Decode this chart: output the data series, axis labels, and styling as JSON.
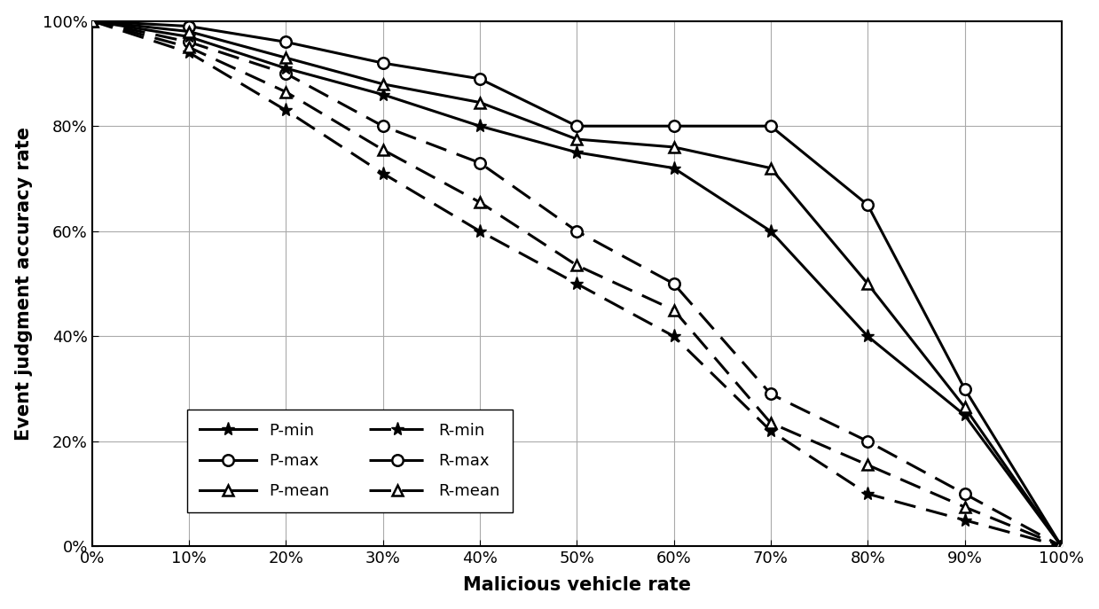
{
  "x": [
    0,
    0.1,
    0.2,
    0.3,
    0.4,
    0.5,
    0.6,
    0.7,
    0.8,
    0.9,
    1.0
  ],
  "P_min": [
    1.0,
    0.97,
    0.91,
    0.86,
    0.8,
    0.75,
    0.72,
    0.6,
    0.4,
    0.25,
    0.0
  ],
  "P_max": [
    1.0,
    0.99,
    0.96,
    0.92,
    0.89,
    0.8,
    0.8,
    0.8,
    0.65,
    0.3,
    0.0
  ],
  "P_mean": [
    1.0,
    0.98,
    0.93,
    0.88,
    0.845,
    0.775,
    0.76,
    0.72,
    0.5,
    0.265,
    0.0
  ],
  "R_min": [
    1.0,
    0.94,
    0.83,
    0.71,
    0.6,
    0.5,
    0.4,
    0.22,
    0.1,
    0.05,
    0.0
  ],
  "R_max": [
    1.0,
    0.96,
    0.9,
    0.8,
    0.73,
    0.6,
    0.5,
    0.29,
    0.2,
    0.1,
    0.0
  ],
  "R_mean": [
    1.0,
    0.95,
    0.865,
    0.755,
    0.655,
    0.535,
    0.45,
    0.235,
    0.155,
    0.075,
    0.0
  ],
  "xlabel": "Malicious vehicle rate",
  "ylabel": "Event judgment accuracy rate",
  "yticks": [
    0,
    0.2,
    0.4,
    0.6,
    0.8,
    1.0
  ],
  "xticks": [
    0,
    0.1,
    0.2,
    0.3,
    0.4,
    0.5,
    0.6,
    0.7,
    0.8,
    0.9,
    1.0
  ],
  "background_color": "#ffffff",
  "fontsize_label": 15,
  "fontsize_tick": 13,
  "fontsize_legend": 13
}
